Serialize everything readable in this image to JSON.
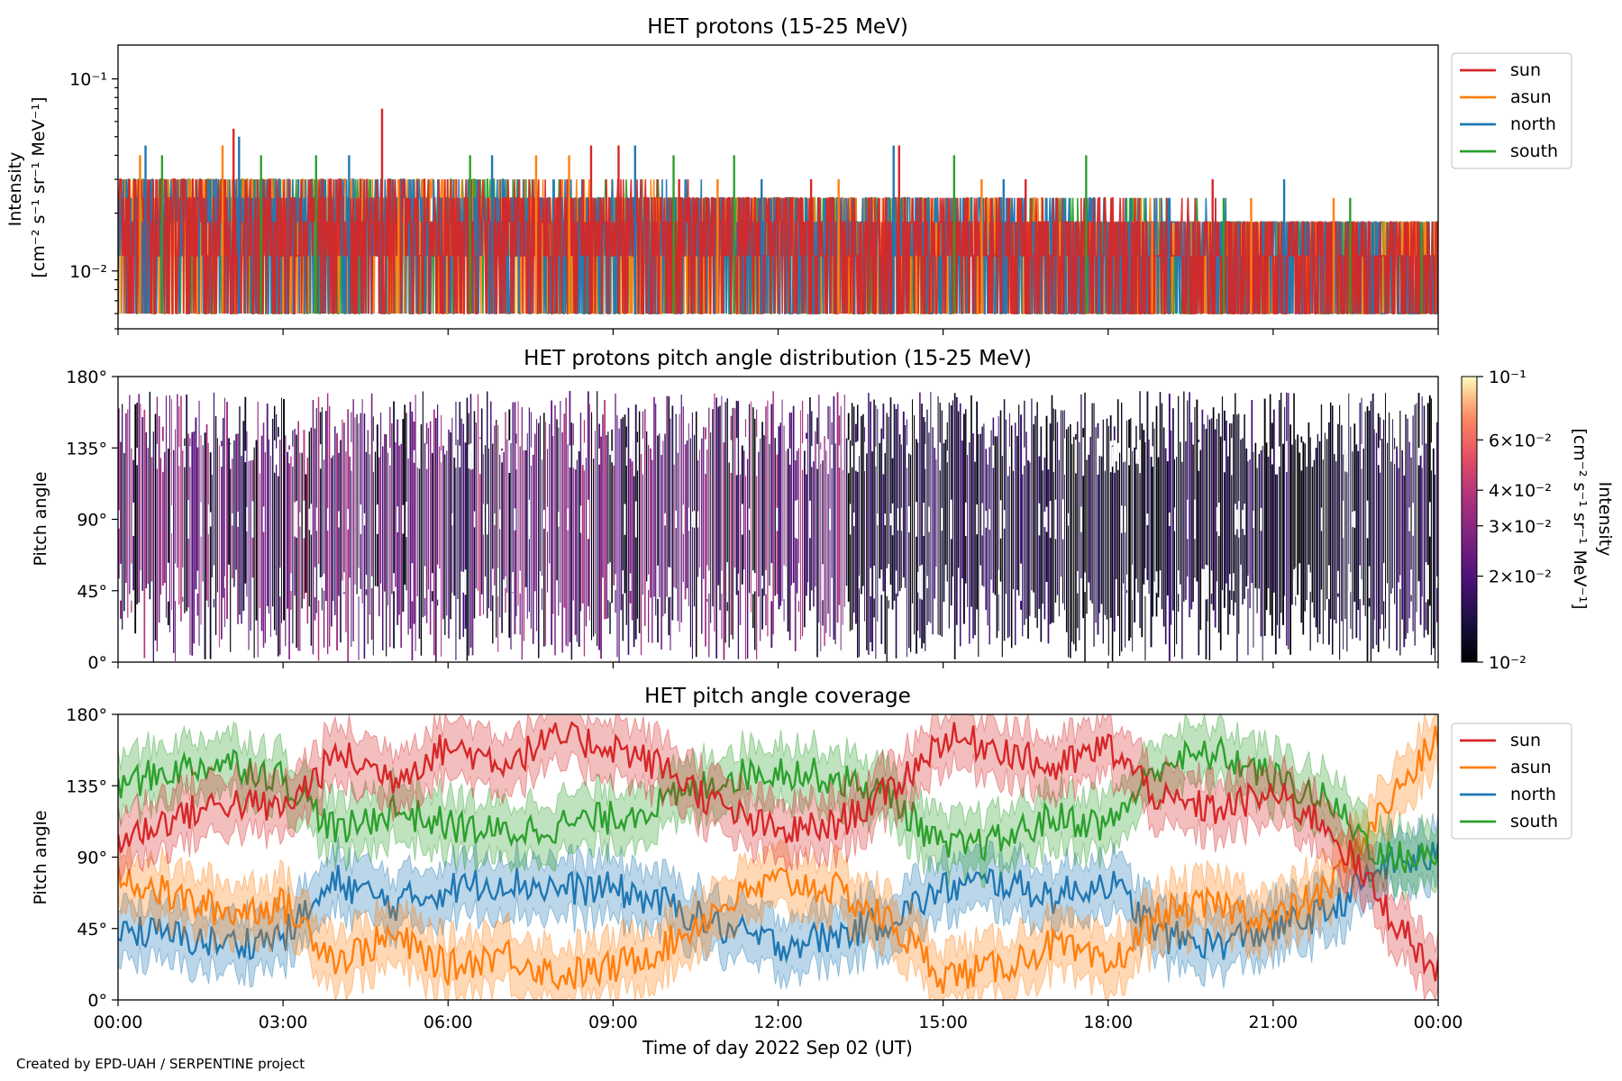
{
  "footer": "Created by EPD-UAH / SERPENTINE project",
  "shared_xaxis": {
    "label": "Time of day 2022 Sep 02 (UT)",
    "range_hours": [
      0,
      24
    ],
    "tick_hours": [
      0,
      3,
      6,
      9,
      12,
      15,
      18,
      21,
      24
    ],
    "tick_labels": [
      "00:00",
      "03:00",
      "06:00",
      "09:00",
      "12:00",
      "15:00",
      "18:00",
      "21:00",
      "00:00"
    ]
  },
  "colors": {
    "sun": "#d62728",
    "asun": "#ff7f0e",
    "north": "#1f77b4",
    "south": "#2ca02c"
  },
  "chart_data": [
    {
      "type": "line",
      "title": "HET protons (15-25 MeV)",
      "ylabel": "Intensity",
      "ylabel_units": "[cm⁻² s⁻¹ sr⁻¹ MeV⁻¹]",
      "yscale": "log",
      "ylim": [
        0.005,
        0.15
      ],
      "ytick_values": [
        0.1,
        0.01
      ],
      "ytick_labels": [
        "10⁻¹",
        "10⁻²"
      ],
      "legend_position": "outside-top-right",
      "series": [
        {
          "name": "sun",
          "color": "#d62728",
          "x_hours": [
            0.2,
            2.1,
            4.8,
            8.6,
            9.1,
            10.2,
            12.6,
            14.2,
            16.5,
            18.3,
            19.9,
            21.8,
            23.4
          ],
          "y": [
            0.03,
            0.055,
            0.07,
            0.045,
            0.045,
            0.03,
            0.03,
            0.045,
            0.03,
            0.018,
            0.03,
            0.018,
            0.018
          ]
        },
        {
          "name": "asun",
          "color": "#ff7f0e",
          "x_hours": [
            0.4,
            1.9,
            5.1,
            7.6,
            8.2,
            10.9,
            13.1,
            15.7,
            18.8,
            20.6,
            22.1
          ],
          "y": [
            0.04,
            0.045,
            0.03,
            0.04,
            0.04,
            0.03,
            0.03,
            0.03,
            0.018,
            0.024,
            0.024
          ]
        },
        {
          "name": "north",
          "color": "#1f77b4",
          "x_hours": [
            0.5,
            2.2,
            4.2,
            6.8,
            9.4,
            11.7,
            14.1,
            16.1,
            19.1,
            21.2,
            22.8
          ],
          "y": [
            0.045,
            0.05,
            0.04,
            0.04,
            0.045,
            0.03,
            0.045,
            0.03,
            0.024,
            0.03,
            0.018
          ]
        },
        {
          "name": "south",
          "color": "#2ca02c",
          "x_hours": [
            0.8,
            2.6,
            3.6,
            6.4,
            10.1,
            11.2,
            15.2,
            17.6,
            20.1,
            22.4,
            23.7
          ],
          "y": [
            0.04,
            0.04,
            0.04,
            0.04,
            0.04,
            0.04,
            0.04,
            0.04,
            0.024,
            0.024,
            0.018
          ]
        }
      ],
      "baseline_band": {
        "ylim": [
          0.006,
          0.03
        ]
      }
    },
    {
      "type": "heatmap",
      "title": "HET protons pitch angle distribution (15-25 MeV)",
      "ylabel": "Pitch angle",
      "ylim": [
        0,
        180
      ],
      "ytick_values": [
        0,
        45,
        90,
        135,
        180
      ],
      "ytick_labels": [
        "0°",
        "45°",
        "90°",
        "135°",
        "180°"
      ],
      "colorscale": "magma",
      "color_range": [
        0.01,
        0.1
      ],
      "colorbar_label": "Intensity",
      "colorbar_units": "[cm⁻² s⁻¹ sr⁻¹ MeV⁻¹]",
      "colorbar_ticks": [
        0.1,
        0.06,
        0.04,
        0.03,
        0.02,
        0.01
      ],
      "colorbar_tick_labels": [
        "10⁻¹",
        "6×10⁻²",
        "4×10⁻²",
        "3×10⁻²",
        "2×10⁻²",
        "10⁻²"
      ]
    },
    {
      "type": "line",
      "title": "HET pitch angle coverage",
      "ylabel": "Pitch angle",
      "ylim": [
        0,
        180
      ],
      "ytick_values": [
        0,
        45,
        90,
        135,
        180
      ],
      "ytick_labels": [
        "0°",
        "45°",
        "90°",
        "135°",
        "180°"
      ],
      "legend_position": "outside-top-right",
      "band_halfwidth_deg": 18,
      "x_hours": [
        0,
        1,
        2,
        3,
        4,
        5,
        6,
        7,
        8,
        9,
        10,
        11,
        12,
        13,
        14,
        15,
        16,
        17,
        18,
        19,
        20,
        21,
        22,
        23,
        24
      ],
      "series": [
        {
          "name": "sun",
          "color": "#d62728",
          "values": [
            100,
            115,
            125,
            120,
            155,
            140,
            160,
            150,
            165,
            160,
            145,
            120,
            105,
            110,
            130,
            165,
            160,
            145,
            160,
            125,
            120,
            130,
            110,
            60,
            15
          ]
        },
        {
          "name": "asun",
          "color": "#ff7f0e",
          "values": [
            80,
            65,
            55,
            60,
            25,
            40,
            20,
            30,
            15,
            20,
            35,
            60,
            75,
            70,
            50,
            15,
            20,
            35,
            20,
            55,
            60,
            50,
            70,
            120,
            165
          ]
        },
        {
          "name": "north",
          "color": "#1f77b4",
          "values": [
            45,
            40,
            35,
            40,
            75,
            60,
            70,
            75,
            70,
            70,
            60,
            45,
            35,
            40,
            50,
            70,
            75,
            65,
            75,
            40,
            35,
            45,
            55,
            85,
            90
          ]
        },
        {
          "name": "south",
          "color": "#2ca02c",
          "values": [
            135,
            145,
            150,
            140,
            105,
            120,
            110,
            105,
            110,
            115,
            125,
            140,
            145,
            140,
            130,
            95,
            100,
            115,
            110,
            150,
            155,
            140,
            125,
            90,
            90
          ]
        }
      ]
    }
  ]
}
